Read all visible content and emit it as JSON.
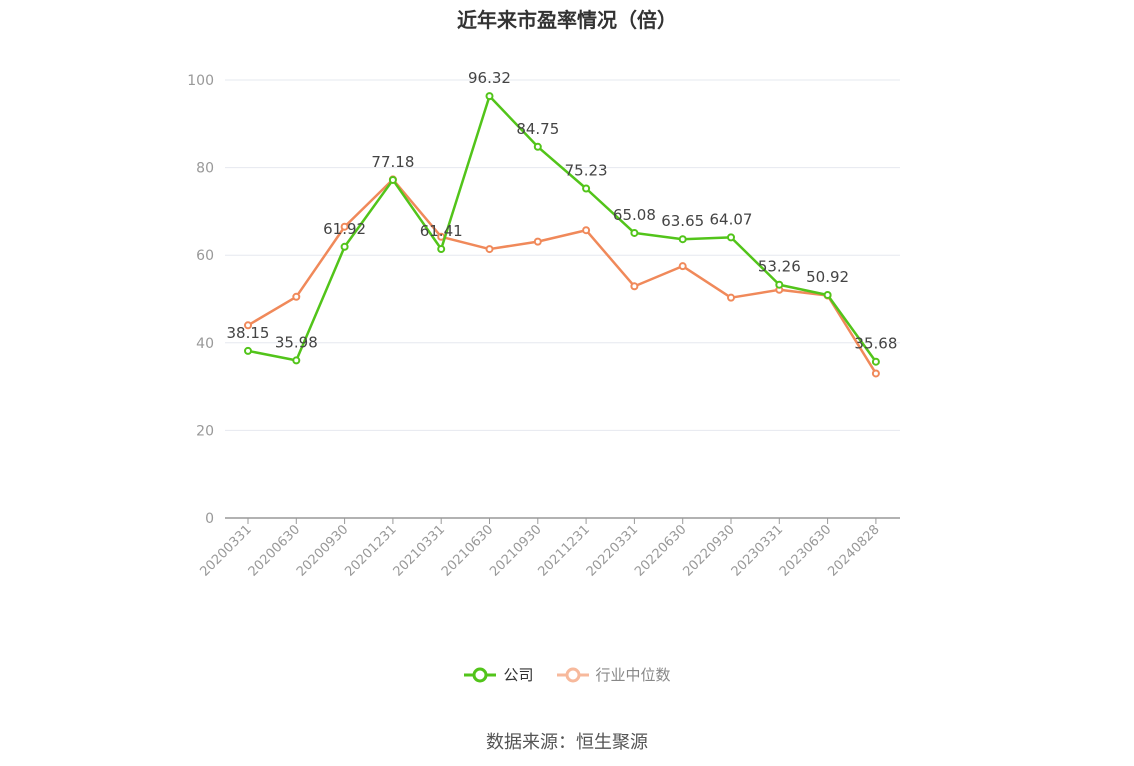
{
  "chart_data": {
    "type": "line",
    "title": "近年来市盈率情况（倍）",
    "categories": [
      "20200331",
      "20200630",
      "20200930",
      "20201231",
      "20210331",
      "20210630",
      "20210930",
      "20211231",
      "20220331",
      "20220630",
      "20220930",
      "20230331",
      "20230630",
      "20240828"
    ],
    "series": [
      {
        "name": "公司",
        "color": "#52c41a",
        "values": [
          38.15,
          35.98,
          61.92,
          77.18,
          61.41,
          96.32,
          84.75,
          75.23,
          65.08,
          63.65,
          64.07,
          53.26,
          50.92,
          35.68
        ],
        "labels": [
          "38.15",
          "35.98",
          "61.92",
          "77.18",
          "61.41",
          "96.32",
          "84.75",
          "75.23",
          "65.08",
          "63.65",
          "64.07",
          "53.26",
          "50.92",
          "35.68"
        ]
      },
      {
        "name": "行业中位数",
        "color": "#f0895a",
        "values": [
          44.0,
          50.5,
          66.5,
          77.3,
          64.2,
          61.4,
          63.1,
          65.7,
          52.9,
          57.5,
          50.3,
          52.1,
          50.8,
          33.0
        ]
      }
    ],
    "ylim": [
      0,
      100
    ],
    "yticks": [
      0,
      20,
      40,
      60,
      80,
      100
    ],
    "grid": true,
    "legend_position": "bottom"
  },
  "legend": {
    "company": "公司",
    "industry": "行业中位数"
  },
  "source_text": "数据来源：恒生聚源"
}
